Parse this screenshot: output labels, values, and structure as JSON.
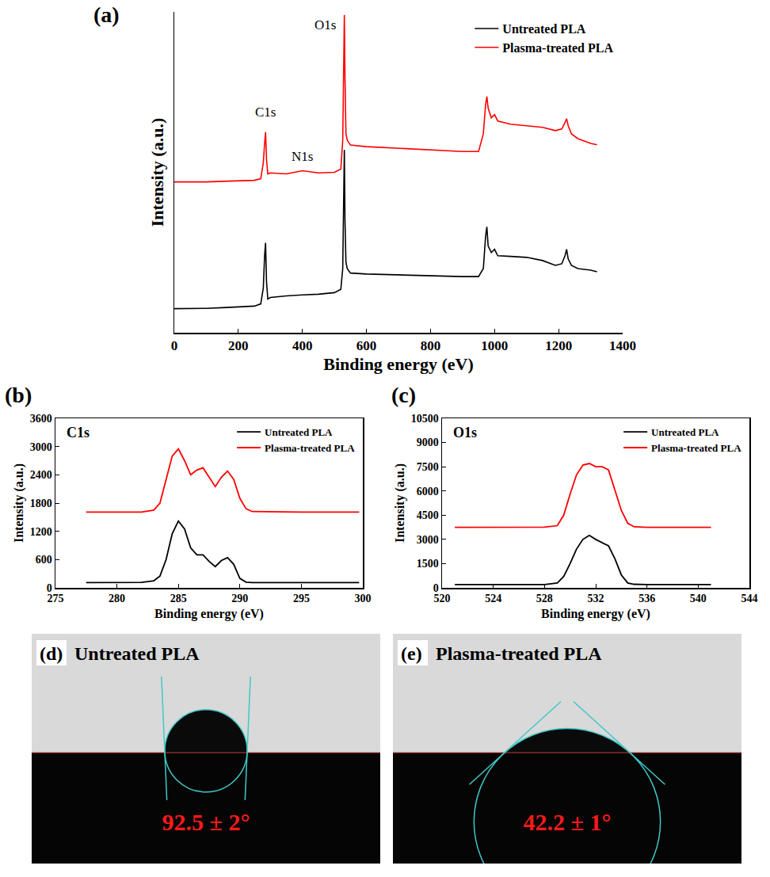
{
  "chart_data": [
    {
      "type": "line",
      "panel_label": "(a)",
      "x_label": "Binding energy (eV)",
      "y_label": "Intensity (a.u.)",
      "xlim": [
        0,
        1400
      ],
      "xticks": [
        0,
        200,
        400,
        600,
        800,
        1000,
        1200,
        1400
      ],
      "ylim": [
        0,
        100
      ],
      "tick_labels": "x",
      "grid": false,
      "legend": "top right",
      "series": [
        {
          "name": "Untreated PLA",
          "color": "#000000",
          "x": [
            0,
            50,
            100,
            150,
            200,
            250,
            270,
            278,
            282,
            285,
            288,
            292,
            300,
            350,
            400,
            450,
            500,
            520,
            526,
            529,
            531,
            533,
            536,
            540,
            550,
            600,
            700,
            800,
            900,
            950,
            965,
            972,
            976,
            980,
            990,
            1000,
            1010,
            1050,
            1100,
            1150,
            1190,
            1210,
            1220,
            1225,
            1230,
            1240,
            1260,
            1300,
            1320
          ],
          "values": [
            7.5,
            7.5,
            7.6,
            7.8,
            8,
            8.3,
            9,
            14,
            24,
            28,
            16,
            10.5,
            11,
            11.5,
            11.8,
            12,
            12.5,
            13.5,
            20,
            40,
            57,
            35,
            22,
            20,
            18.6,
            18.3,
            18,
            17.8,
            17.5,
            17.5,
            20,
            30,
            33,
            27,
            25,
            26,
            24,
            23.8,
            23.5,
            22.5,
            21,
            21.5,
            24,
            26,
            23,
            21,
            20,
            19.5,
            19
          ]
        },
        {
          "name": "Plasma-treated PLA",
          "color": "#ff0000",
          "x": [
            0,
            50,
            100,
            150,
            200,
            250,
            270,
            278,
            282,
            285,
            288,
            292,
            300,
            350,
            400,
            450,
            500,
            520,
            526,
            529,
            531,
            533,
            536,
            540,
            550,
            600,
            700,
            800,
            900,
            950,
            965,
            972,
            976,
            980,
            990,
            1000,
            1010,
            1050,
            1100,
            1150,
            1190,
            1210,
            1220,
            1225,
            1230,
            1240,
            1260,
            1300,
            1320
          ],
          "values": [
            47,
            47,
            47,
            47.2,
            47.3,
            47.5,
            48,
            53,
            59,
            62.5,
            54,
            49.5,
            49.8,
            49.5,
            50.5,
            49.8,
            50,
            51,
            60,
            85,
            99,
            80,
            62,
            60,
            58.5,
            58,
            57.5,
            57,
            56.5,
            56.5,
            62,
            71,
            73.6,
            70,
            67,
            68,
            66,
            65,
            64.5,
            64,
            63,
            63.5,
            65.5,
            66.7,
            64.5,
            62,
            60.5,
            59,
            58.6
          ]
        }
      ],
      "annotations": [
        {
          "text": "C1s",
          "x": 285,
          "y": 66
        },
        {
          "text": "N1s",
          "x": 400,
          "y": 52
        },
        {
          "text": "O1s",
          "x": 470,
          "y": 93
        }
      ]
    },
    {
      "type": "line",
      "panel_label": "(b)",
      "title": "C1s",
      "x_label": "Binding energy (eV)",
      "y_label": "Intensity (a.u.)",
      "xlim": [
        275,
        300
      ],
      "xticks": [
        275,
        280,
        285,
        290,
        295,
        300
      ],
      "ylim": [
        0,
        3600
      ],
      "yticks": [
        0,
        600,
        1200,
        1800,
        2400,
        3000,
        3600
      ],
      "grid": false,
      "legend": "top right",
      "series": [
        {
          "name": "Untreated PLA",
          "color": "#000000",
          "x": [
            277.5,
            280,
            282,
            283,
            283.5,
            284,
            284.5,
            285,
            285.5,
            286,
            286.5,
            287,
            287.5,
            288,
            288.5,
            289,
            289.5,
            290,
            290.5,
            291,
            295,
            299.7
          ],
          "values": [
            110,
            110,
            115,
            150,
            250,
            600,
            1150,
            1420,
            1250,
            850,
            700,
            700,
            560,
            450,
            580,
            640,
            500,
            200,
            120,
            110,
            110,
            110
          ]
        },
        {
          "name": "Plasma-treated PLA",
          "color": "#ff0000",
          "x": [
            277.5,
            280,
            282,
            283,
            283.5,
            284,
            284.5,
            285,
            285.5,
            286,
            286.5,
            287,
            287.5,
            288,
            288.5,
            289,
            289.5,
            290,
            290.5,
            291,
            295,
            299.7
          ],
          "values": [
            1610,
            1610,
            1610,
            1650,
            1800,
            2300,
            2800,
            2950,
            2700,
            2400,
            2500,
            2550,
            2350,
            2150,
            2350,
            2480,
            2300,
            1900,
            1680,
            1620,
            1610,
            1610
          ]
        }
      ]
    },
    {
      "type": "line",
      "panel_label": "(c)",
      "title": "O1s",
      "x_label": "Binding energy (eV)",
      "y_label": "Intensity (a.u.)",
      "xlim": [
        520,
        544
      ],
      "xticks": [
        520,
        524,
        528,
        532,
        536,
        540,
        544
      ],
      "ylim": [
        0,
        10500
      ],
      "yticks": [
        0,
        1500,
        3000,
        4500,
        6000,
        7500,
        9000,
        10500
      ],
      "grid": false,
      "legend": "top right",
      "series": [
        {
          "name": "Untreated PLA",
          "color": "#000000",
          "x": [
            521,
            525,
            528,
            529,
            529.5,
            530,
            530.5,
            531,
            531.5,
            532,
            532.5,
            533,
            533.5,
            534,
            534.5,
            535,
            536,
            538,
            541
          ],
          "values": [
            200,
            200,
            200,
            300,
            700,
            1500,
            2400,
            3000,
            3250,
            3000,
            2800,
            2600,
            1800,
            800,
            300,
            220,
            200,
            200,
            200
          ]
        },
        {
          "name": "Plasma-treated PLA",
          "color": "#ff0000",
          "x": [
            521,
            525,
            528,
            529,
            529.5,
            530,
            530.5,
            531,
            531.5,
            532,
            532.5,
            533,
            533.5,
            534,
            534.5,
            535,
            536,
            538,
            541
          ],
          "values": [
            3750,
            3750,
            3760,
            3850,
            4500,
            5800,
            7000,
            7600,
            7700,
            7500,
            7500,
            7300,
            6000,
            4800,
            4000,
            3780,
            3750,
            3750,
            3750
          ]
        }
      ]
    }
  ],
  "contact_angle_images": [
    {
      "panel_label": "(d)",
      "title": "Untreated PLA",
      "contact_angle": 92.5,
      "contact_angle_label": "92.5 ± 2°"
    },
    {
      "panel_label": "(e)",
      "title": "Plasma-treated PLA",
      "contact_angle": 42.2,
      "contact_angle_label": "42.2 ± 1°"
    }
  ]
}
